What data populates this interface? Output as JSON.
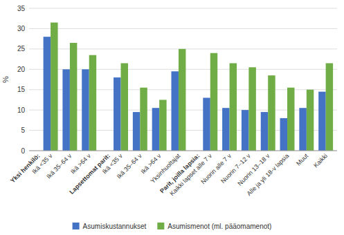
{
  "chart_data": {
    "type": "bar",
    "categories": [
      "Yksi henkilö:",
      "Ikä <35 v",
      "Ikä 35–64 v",
      "Ikä >64 v",
      "Lapsettomat parit:",
      "Ikä <35 v",
      "Ikä 35–64 v",
      "Ikä >64 v",
      "Yksinhuoltajat",
      "Parit, joilla lapsia:",
      "Kaikki lapset alle 7 v",
      "Nuorin alle 7 v",
      "Nuorin 7–12 v",
      "Nuorin 13–18 v",
      "Alle ja yli 18-v lapsia",
      "Muut",
      "Kaikki"
    ],
    "series": [
      {
        "name": "Asumiskustannukset",
        "color": "#4472c4",
        "values": [
          null,
          28.0,
          20.0,
          20.0,
          null,
          18.0,
          9.5,
          10.5,
          19.5,
          null,
          13.0,
          10.5,
          10.0,
          9.5,
          8.0,
          10.5,
          14.5
        ]
      },
      {
        "name": "Asumismenot (ml. pääomamenot)",
        "color": "#70ad47",
        "values": [
          null,
          31.5,
          26.5,
          23.5,
          null,
          21.5,
          15.5,
          12.5,
          25.0,
          null,
          24.0,
          21.5,
          20.5,
          18.5,
          15.5,
          15.0,
          21.5
        ]
      }
    ],
    "ylabel": "%",
    "ylim": [
      0,
      35
    ],
    "yticks": [
      0,
      5,
      10,
      15,
      20,
      25,
      30,
      35
    ],
    "grid": true,
    "legend": "bottom"
  }
}
